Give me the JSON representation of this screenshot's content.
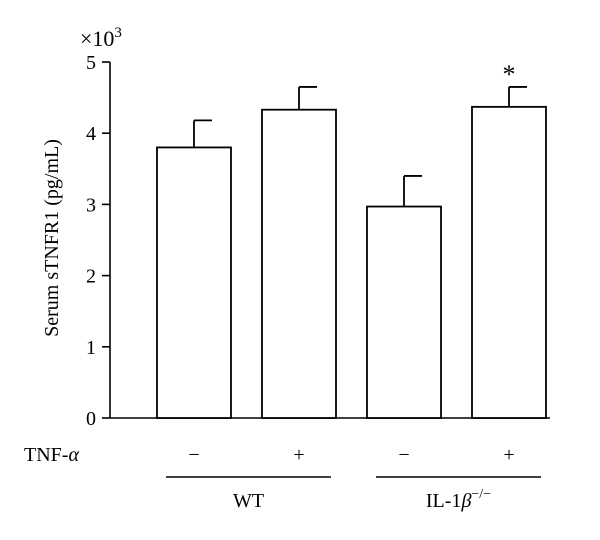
{
  "chart_data": {
    "type": "bar",
    "ylabel": "Serum sTNFR1 (pg/mL)",
    "y_multiplier": "×10",
    "y_multiplier_exp": "3",
    "ylim": [
      0,
      5
    ],
    "yticks": [
      "0",
      "1",
      "2",
      "3",
      "4",
      "5"
    ],
    "grid": false,
    "bars": [
      {
        "group": "WT",
        "tnf": "−",
        "value": 3.8,
        "error": 0.38,
        "annotation": ""
      },
      {
        "group": "WT",
        "tnf": "+",
        "value": 4.33,
        "error": 0.32,
        "annotation": ""
      },
      {
        "group": "IL-1β−/−",
        "tnf": "−",
        "value": 2.97,
        "error": 0.43,
        "annotation": ""
      },
      {
        "group": "IL-1β−/−",
        "tnf": "+",
        "value": 4.37,
        "error": 0.28,
        "annotation": "*"
      }
    ],
    "treatment_label": "TNF-α",
    "groups": [
      {
        "label": "WT",
        "main": "WT",
        "sup": ""
      },
      {
        "label": "IL-1β−/−",
        "main": "IL-1β",
        "sup": "−/−"
      }
    ]
  },
  "colors": {
    "bar_fill": "#ffffff",
    "stroke": "#000000"
  }
}
